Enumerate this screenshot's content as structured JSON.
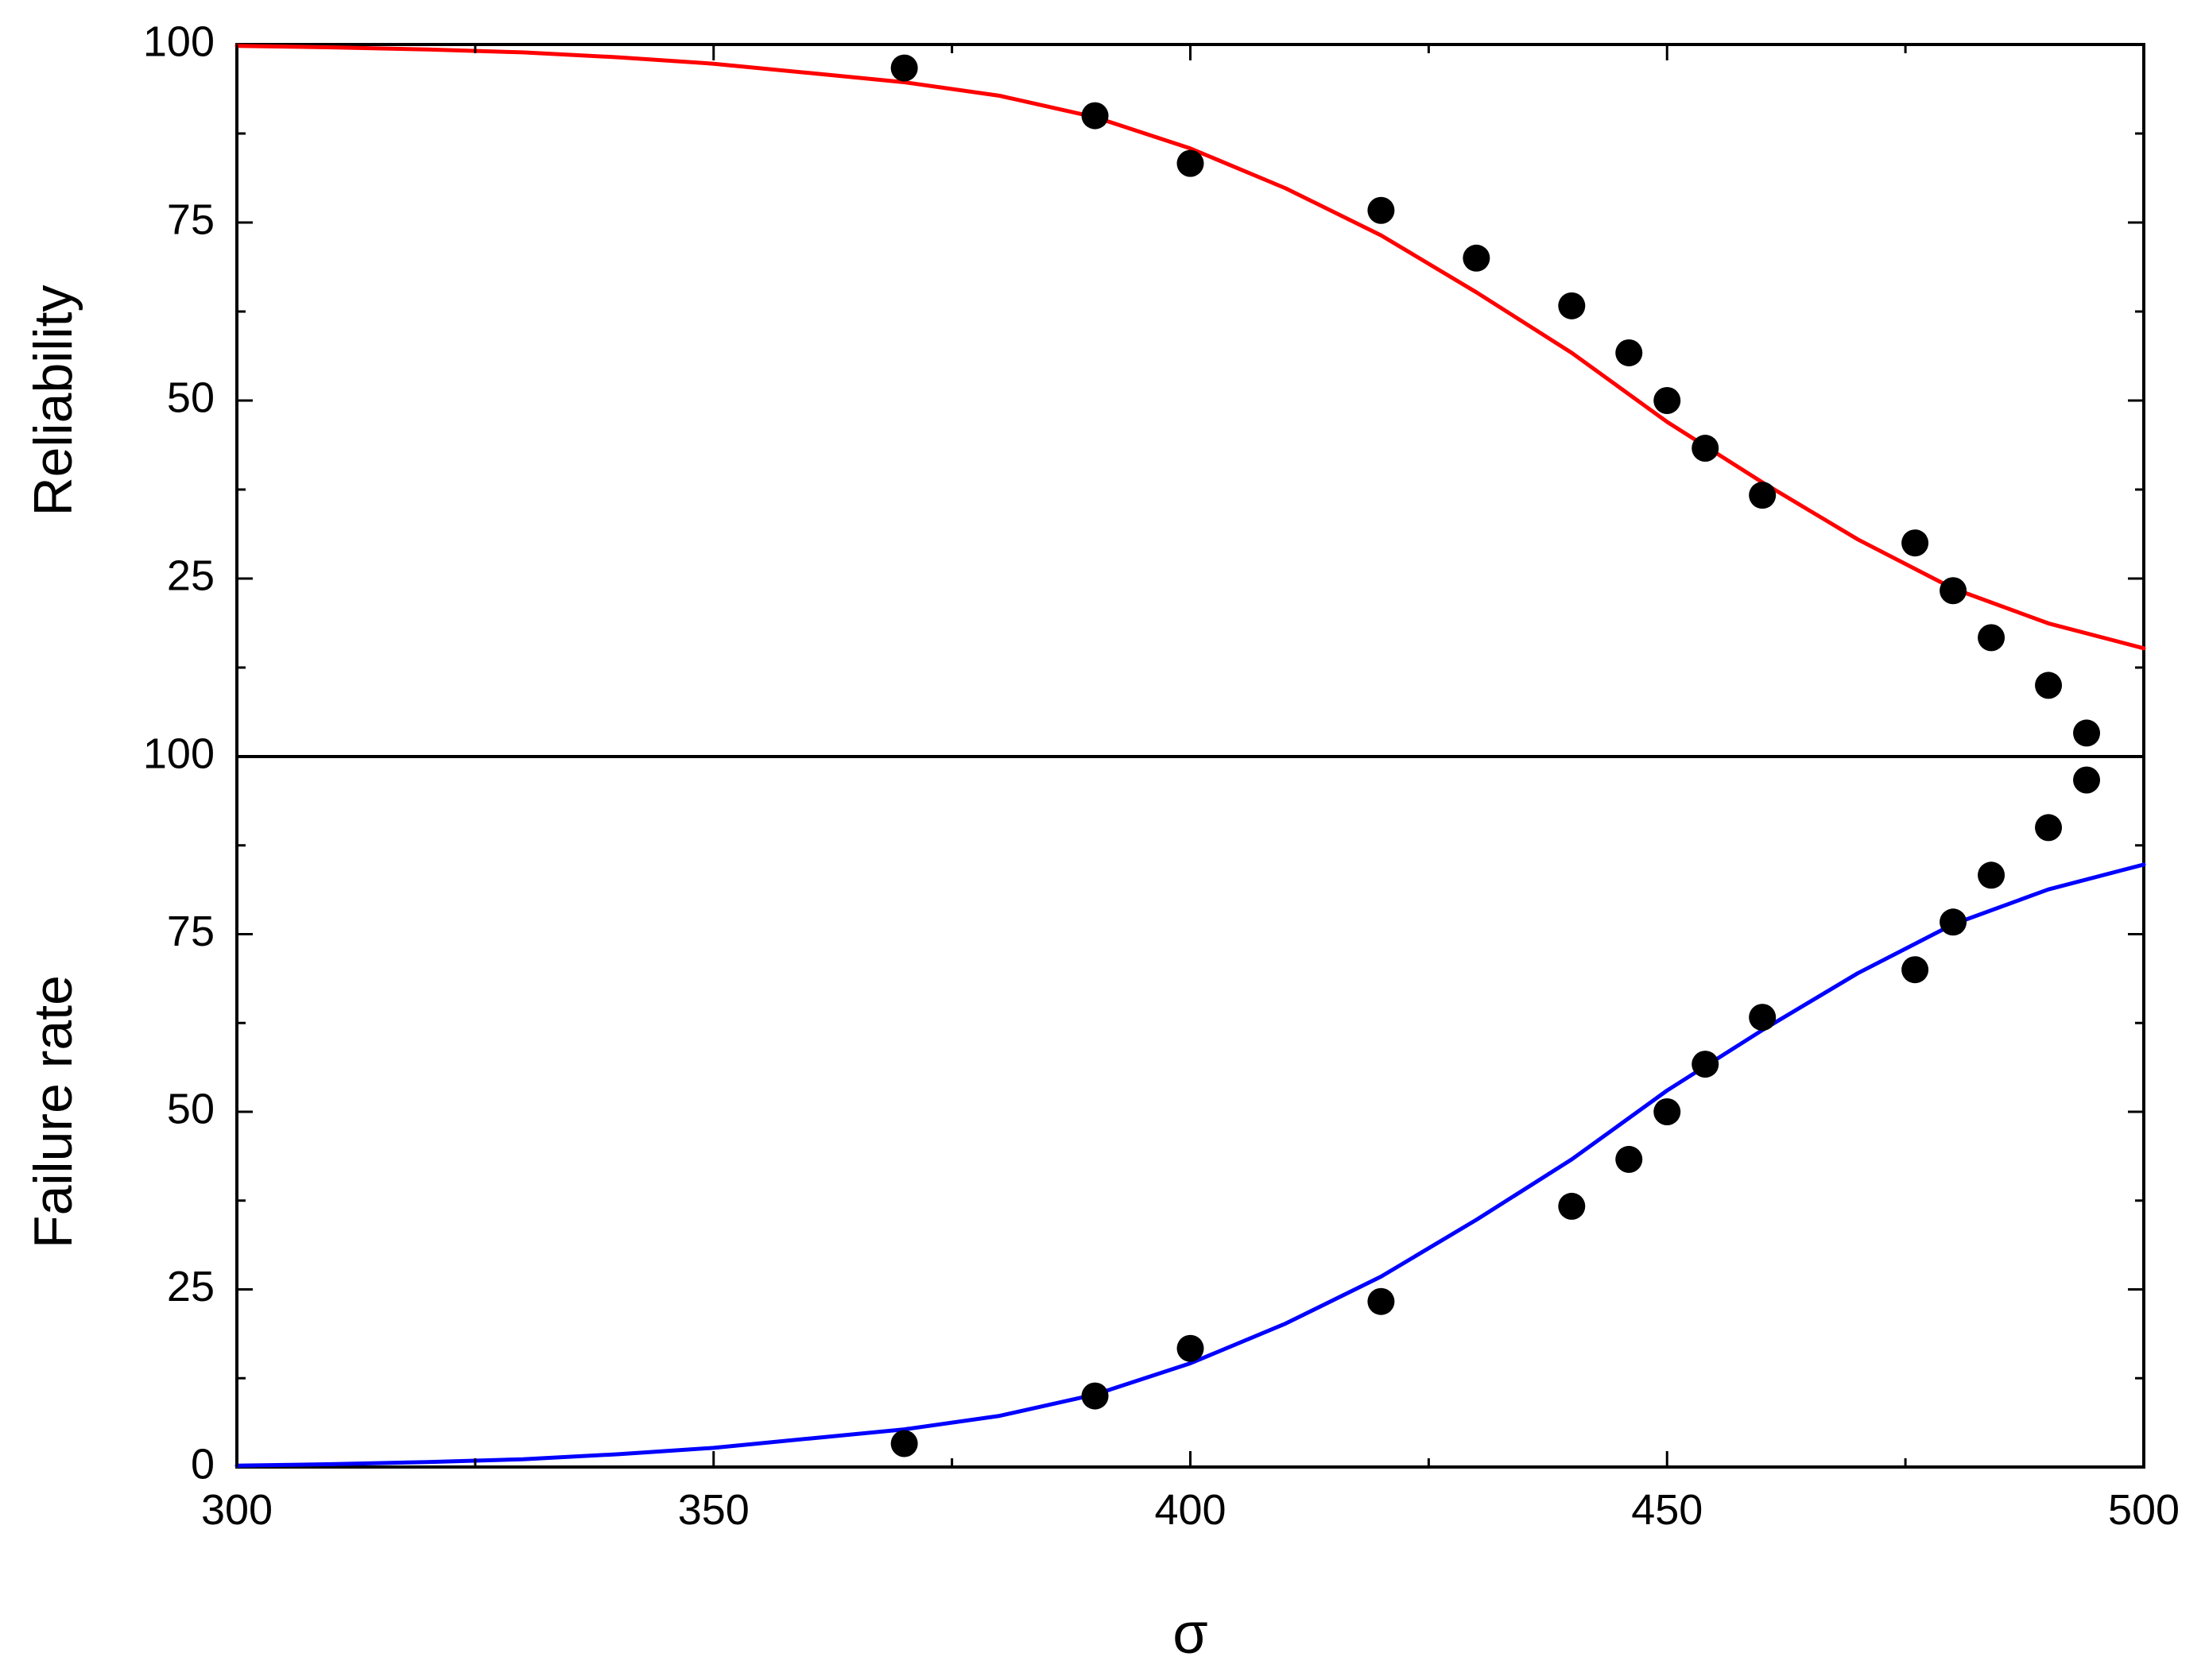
{
  "chart_data": {
    "type": "scatter",
    "x": {
      "label": "σ",
      "range": [
        300,
        500
      ],
      "ticks": [
        300,
        350,
        400,
        450,
        500
      ],
      "minor_ticks": [
        325,
        375,
        425,
        475
      ]
    },
    "panels": [
      {
        "position": "top",
        "ylabel": "Reliability",
        "ylim": [
          0,
          100
        ],
        "yticks": [
          100,
          75,
          50,
          25
        ],
        "minor_yticks": [
          87.5,
          62.5,
          37.5,
          12.5
        ],
        "curve": {
          "color": "#ff0000",
          "x": [
            300,
            310,
            320,
            330,
            340,
            350,
            360,
            370,
            380,
            390,
            400,
            410,
            420,
            430,
            440,
            450,
            460,
            470,
            480,
            490,
            500
          ],
          "y": [
            99.8,
            99.6,
            99.3,
            98.9,
            98.2,
            97.3,
            96.0,
            94.7,
            92.8,
            89.8,
            85.4,
            79.8,
            73.2,
            65.2,
            56.7,
            47.0,
            38.5,
            30.5,
            23.6,
            18.7,
            15.2
          ]
        },
        "points": {
          "color": "#000000",
          "x": [
            370,
            390,
            400,
            420,
            430,
            440,
            446,
            450,
            454,
            460,
            476,
            480,
            484,
            490,
            494
          ],
          "y": [
            96.7,
            90.0,
            83.3,
            76.7,
            70.0,
            63.3,
            56.7,
            50.0,
            43.3,
            36.7,
            30.0,
            23.3,
            16.7,
            10.0,
            3.3
          ]
        }
      },
      {
        "position": "bottom",
        "ylabel": "Failure rate",
        "ylim": [
          0,
          100
        ],
        "yticks": [
          100,
          75,
          50,
          25,
          0
        ],
        "minor_yticks": [
          87.5,
          62.5,
          37.5,
          12.5
        ],
        "curve": {
          "color": "#0000ff",
          "x": [
            300,
            310,
            320,
            330,
            340,
            350,
            360,
            370,
            380,
            390,
            400,
            410,
            420,
            430,
            440,
            450,
            460,
            470,
            480,
            490,
            500
          ],
          "y": [
            0.2,
            0.4,
            0.7,
            1.1,
            1.8,
            2.7,
            4.0,
            5.3,
            7.2,
            10.2,
            14.6,
            20.2,
            26.8,
            34.8,
            43.3,
            53.0,
            61.5,
            69.5,
            76.4,
            81.3,
            84.8
          ]
        },
        "points": {
          "color": "#000000",
          "x": [
            370,
            390,
            400,
            420,
            440,
            446,
            450,
            454,
            460,
            476,
            480,
            484,
            490,
            494
          ],
          "y": [
            3.3,
            10.0,
            16.7,
            23.3,
            36.7,
            43.3,
            50.0,
            56.7,
            63.3,
            70.0,
            76.7,
            83.3,
            90.0,
            96.7
          ]
        }
      }
    ]
  }
}
